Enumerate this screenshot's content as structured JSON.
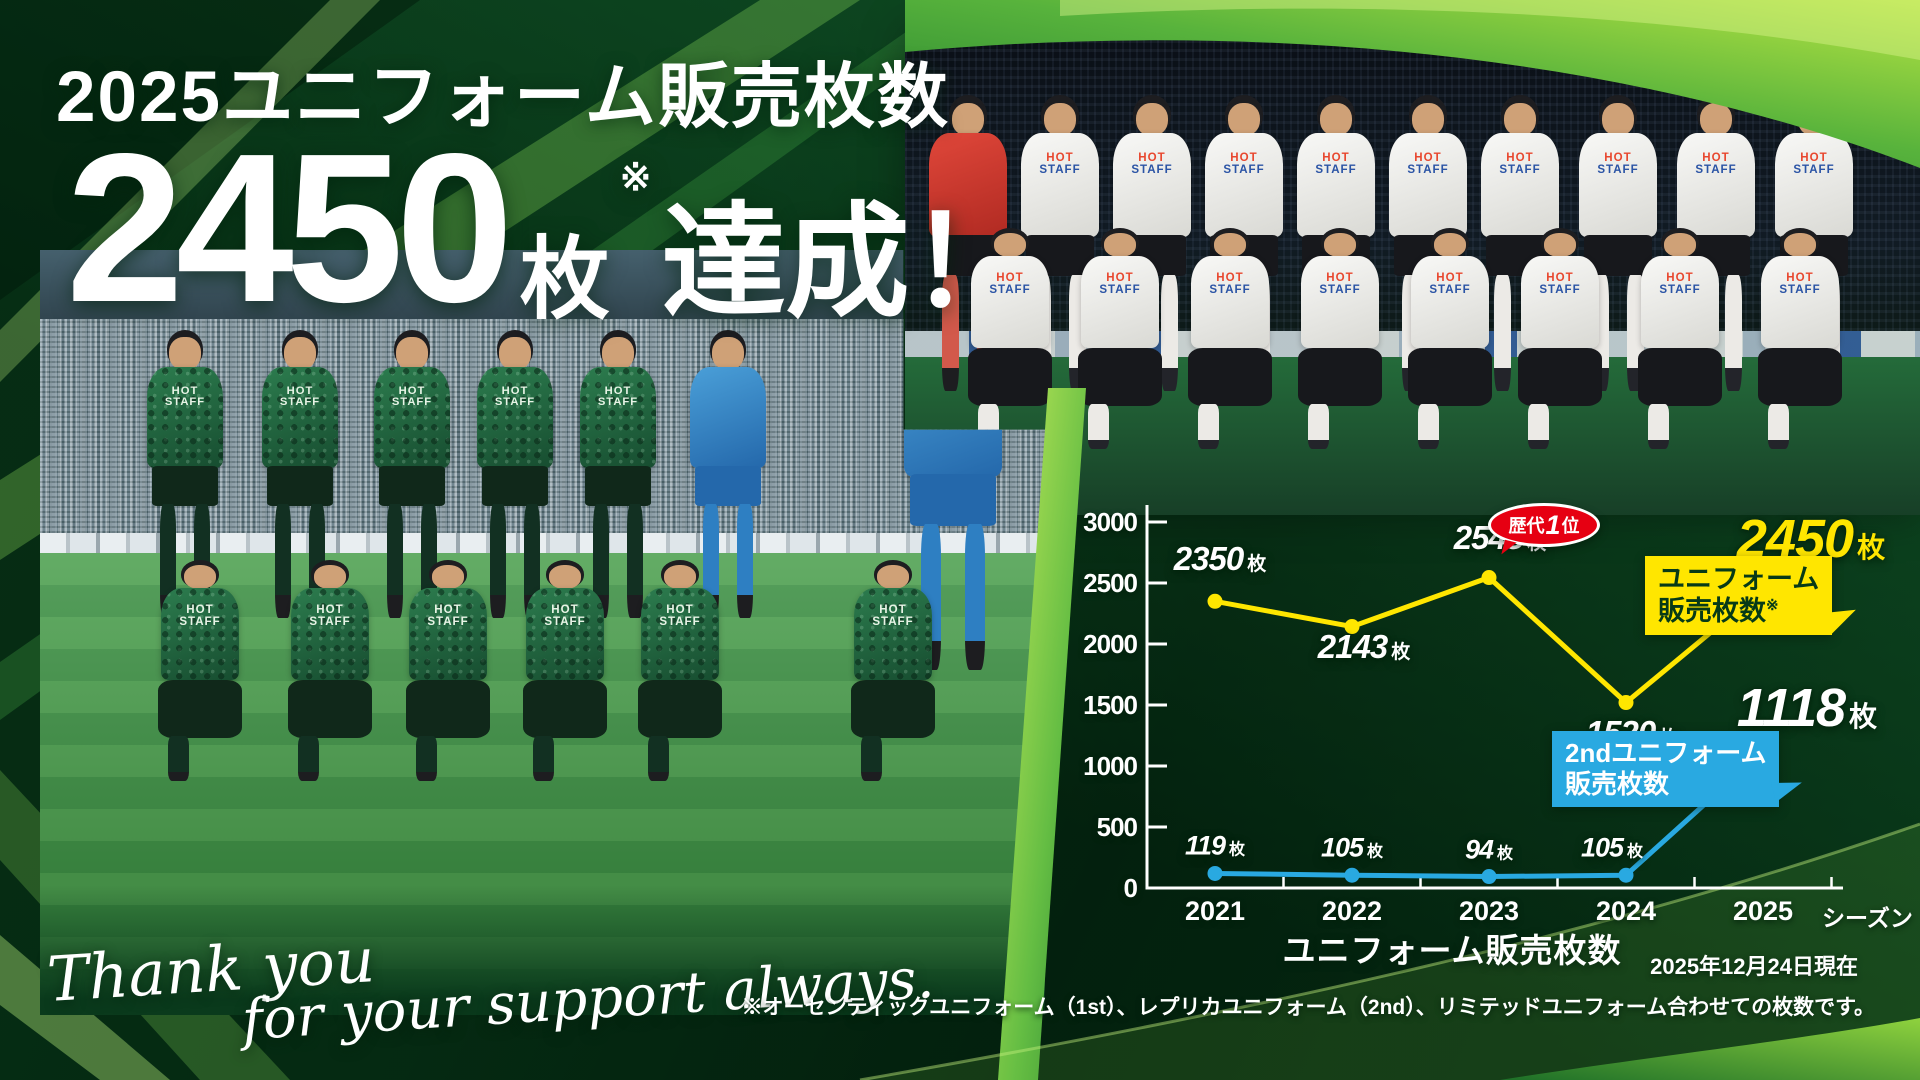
{
  "poster": {
    "title": "2025ユニフォーム販売枚数",
    "big_number": "2450",
    "big_unit": "枚",
    "note_mark": "※",
    "big_suffix": "達成！",
    "thanks_line1": "Thank you",
    "thanks_line2": "for your support always.",
    "as_of": "2025年12月24日現在",
    "footnote": "※オーセンティックユニフォーム（1st）、レプリカユニフォーム（2nd）、リミテッドユニフォーム合わせての枚数です。",
    "shirt_sponsor_line1": "HOT",
    "shirt_sponsor_line2": "STAFF"
  },
  "chart_data": {
    "type": "line",
    "title": "ユニフォーム販売枚数",
    "x_axis_label": "シーズン",
    "categories": [
      "2021",
      "2022",
      "2023",
      "2024",
      "2025"
    ],
    "unit": "枚",
    "ylim": [
      0,
      3000
    ],
    "yticks": [
      0,
      500,
      1000,
      1500,
      2000,
      2500,
      3000
    ],
    "grid": false,
    "legend_position": "inline-callouts",
    "series": [
      {
        "name": "ユニフォーム販売枚数※",
        "color": "#ffe600",
        "values": [
          2350,
          2143,
          2545,
          1520,
          2450
        ]
      },
      {
        "name": "2ndユニフォーム販売枚数",
        "color": "#29a9e1",
        "values": [
          119,
          105,
          94,
          105,
          1118
        ]
      }
    ],
    "annotations": {
      "badge_prefix": "歴代",
      "badge_number": "1",
      "badge_suffix": "位",
      "main_callout_line1": "ユニフォーム",
      "main_callout_line2": "販売枚数",
      "main_callout_mark": "※",
      "second_callout_line1": "2ndユニフォーム",
      "second_callout_line2": "販売枚数"
    }
  }
}
